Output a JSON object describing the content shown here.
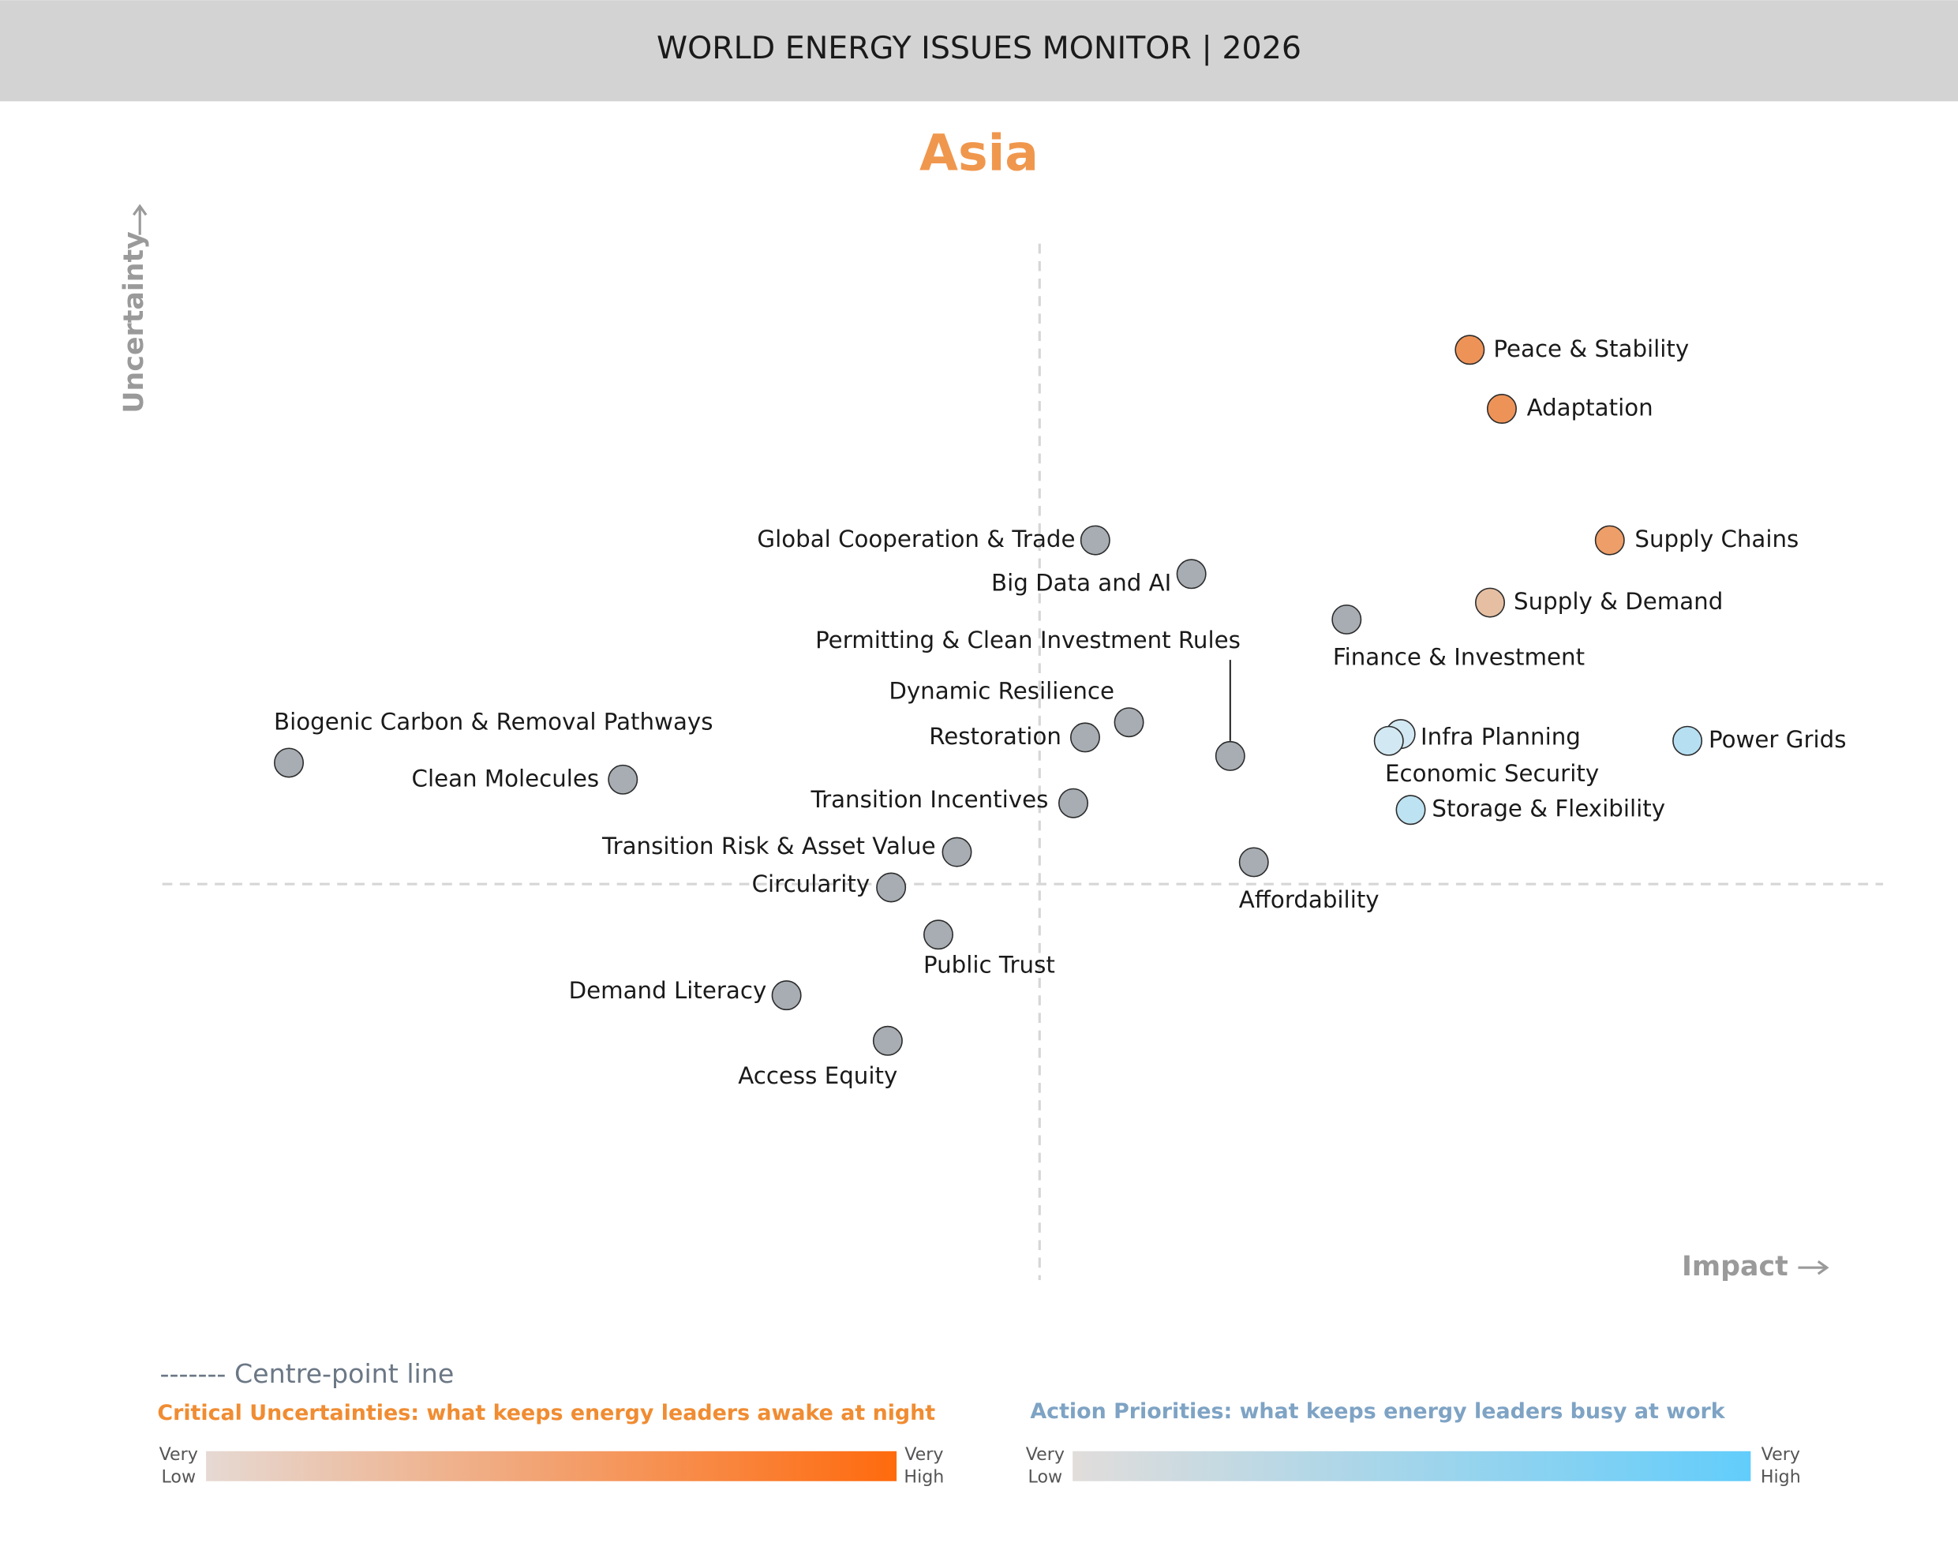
{
  "header": {
    "title": "WORLD ENERGY ISSUES MONITOR | 2026"
  },
  "chart_data": {
    "type": "scatter",
    "title": "Asia",
    "x_label": "Impact",
    "y_label": "Uncertainty",
    "xlim": [
      -5.2,
      5.0
    ],
    "ylim": [
      -2.35,
      3.8
    ],
    "labels": [
      "Peace & Stability",
      "Adaptation",
      "Supply Chains",
      "Supply & Demand",
      "Finance & Investment",
      "Global Cooperation & Trade",
      "Big Data and AI",
      "Permitting & Clean Investment Rules",
      "Dynamic Resilience",
      "Restoration",
      "Biogenic Carbon & Removal Pathways",
      "Clean Molecules",
      "Transition Incentives",
      "Transition Risk & Asset Value",
      "Circularity",
      "Public Trust",
      "Demand Literacy",
      "Access Equity",
      "Affordability",
      "Infra Planning",
      "Economic Security",
      "Storage & Flexibility",
      "Power Grids"
    ],
    "x": [
      2.55,
      2.74,
      3.38,
      2.67,
      1.82,
      0.33,
      0.9,
      1.13,
      0.53,
      0.27,
      -4.45,
      -2.47,
      0.2,
      -0.49,
      -0.88,
      -0.6,
      -1.5,
      -0.9,
      1.27,
      2.14,
      2.07,
      2.2,
      3.84
    ],
    "y": [
      3.17,
      2.82,
      2.04,
      1.67,
      1.57,
      2.04,
      1.84,
      0.76,
      0.96,
      0.87,
      0.72,
      0.62,
      0.48,
      0.19,
      -0.02,
      -0.3,
      -0.66,
      -0.93,
      0.13,
      0.89,
      0.85,
      0.44,
      0.85
    ],
    "colors": [
      "#ee9358",
      "#ee9358",
      "#ee9e68",
      "#e6bfa2",
      "#a7adb2",
      "#a7adb2",
      "#a7adb2",
      "#a7adb2",
      "#a7adb2",
      "#a7adb2",
      "#a7adb2",
      "#a7adb2",
      "#a7adb2",
      "#a7adb2",
      "#a7adb2",
      "#a7adb2",
      "#a7adb2",
      "#a7adb2",
      "#a7adb2",
      "#d2e9f3",
      "#d2e9f3",
      "#bde2f1",
      "#b6dff2"
    ]
  },
  "legend": {
    "centre_line": "------- Centre-point line",
    "critical": {
      "title": "Critical Uncertainties: what keeps energy leaders awake at night",
      "low": [
        "Very",
        "Low"
      ],
      "high": [
        "Very",
        "High"
      ],
      "colors": [
        "#e6d9d3",
        "#ff6a0d"
      ]
    },
    "action": {
      "title": "Action Priorities: what keeps energy leaders busy at work",
      "low": [
        "Very",
        "Low"
      ],
      "high": [
        "Very",
        "High"
      ],
      "colors": [
        "#e1dddb",
        "#62cdfb"
      ]
    }
  }
}
